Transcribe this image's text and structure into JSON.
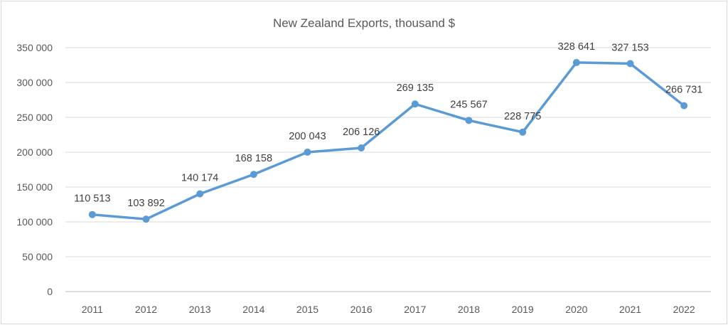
{
  "chart_data": {
    "type": "line",
    "title": "New Zealand Exports, thousand $",
    "xlabel": "",
    "ylabel": "",
    "categories": [
      "2011",
      "2012",
      "2013",
      "2014",
      "2015",
      "2016",
      "2017",
      "2018",
      "2019",
      "2020",
      "2021",
      "2022"
    ],
    "series": [
      {
        "values": [
          110513,
          103892,
          140174,
          168158,
          200043,
          206126,
          269135,
          245567,
          228775,
          328641,
          327153,
          266731
        ],
        "labels": [
          "110 513",
          "103 892",
          "140 174",
          "168 158",
          "200 043",
          "206 126",
          "269 135",
          "245 567",
          "228 775",
          "328 641",
          "327 153",
          "266 731"
        ],
        "color": "#5b9bd5"
      }
    ],
    "ylim": [
      0,
      350000
    ],
    "yticks": [
      0,
      50000,
      100000,
      150000,
      200000,
      250000,
      300000,
      350000
    ],
    "ytick_labels": [
      "0",
      "50 000",
      "100 000",
      "150 000",
      "200 000",
      "250 000",
      "300 000",
      "350 000"
    ],
    "grid": true,
    "legend": "none",
    "colors": {
      "gridline": "#d9d9d9",
      "axis": "#bfbfbf"
    }
  }
}
